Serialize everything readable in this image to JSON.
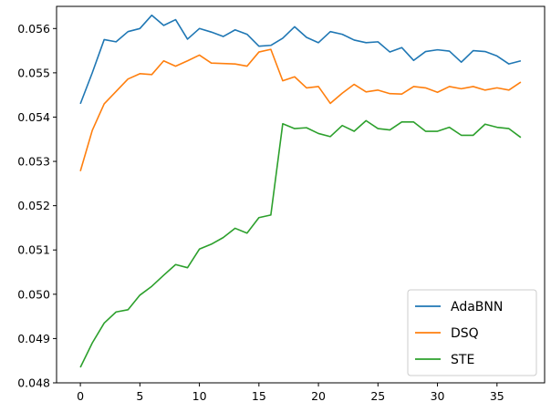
{
  "chart_data": {
    "type": "line",
    "title": "",
    "xlabel": "",
    "ylabel": "",
    "xlim": [
      -2,
      39
    ],
    "ylim": [
      0.048,
      0.0565
    ],
    "xticks": [
      0,
      5,
      10,
      15,
      20,
      25,
      30,
      35
    ],
    "yticks": [
      0.048,
      0.049,
      0.05,
      0.051,
      0.052,
      0.053,
      0.054,
      0.055,
      0.056
    ],
    "xtick_labels": [
      "0",
      "5",
      "10",
      "15",
      "20",
      "25",
      "30",
      "35"
    ],
    "ytick_labels": [
      "0.048",
      "0.049",
      "0.050",
      "0.051",
      "0.052",
      "0.053",
      "0.054",
      "0.055",
      "0.056"
    ],
    "grid": false,
    "legend_position": "lower-right",
    "x": [
      0,
      1,
      2,
      3,
      4,
      5,
      6,
      7,
      8,
      9,
      10,
      11,
      12,
      13,
      14,
      15,
      16,
      17,
      18,
      19,
      20,
      21,
      22,
      23,
      24,
      25,
      26,
      27,
      28,
      29,
      30,
      31,
      32,
      33,
      34,
      35,
      36,
      37
    ],
    "series": [
      {
        "name": "AdaBNN",
        "color": "#1f77b4",
        "values": [
          0.0543,
          0.055,
          0.05575,
          0.0557,
          0.05593,
          0.056,
          0.0563,
          0.05607,
          0.0562,
          0.05576,
          0.056,
          0.05592,
          0.05582,
          0.05597,
          0.05587,
          0.0556,
          0.05562,
          0.05578,
          0.05604,
          0.0558,
          0.05568,
          0.05593,
          0.05587,
          0.05574,
          0.05568,
          0.0557,
          0.05547,
          0.05557,
          0.05528,
          0.05548,
          0.05552,
          0.05549,
          0.05524,
          0.0555,
          0.05548,
          0.05538,
          0.0552,
          0.05527
        ]
      },
      {
        "name": "DSQ",
        "color": "#ff7f0e",
        "values": [
          0.05278,
          0.0537,
          0.0543,
          0.05458,
          0.05486,
          0.05498,
          0.05496,
          0.05527,
          0.05515,
          0.05527,
          0.0554,
          0.05522,
          0.05521,
          0.0552,
          0.05515,
          0.05547,
          0.05553,
          0.05482,
          0.05491,
          0.05466,
          0.05469,
          0.05431,
          0.05454,
          0.05474,
          0.05457,
          0.05461,
          0.05453,
          0.05452,
          0.05469,
          0.05466,
          0.05456,
          0.05469,
          0.05464,
          0.05469,
          0.05461,
          0.05466,
          0.05461,
          0.05479
        ]
      },
      {
        "name": "STE",
        "color": "#2ca02c",
        "values": [
          0.04835,
          0.0489,
          0.04935,
          0.0496,
          0.04965,
          0.04998,
          0.05018,
          0.05043,
          0.05067,
          0.0506,
          0.05102,
          0.05113,
          0.05128,
          0.05149,
          0.05138,
          0.05173,
          0.05179,
          0.05385,
          0.05374,
          0.05376,
          0.05363,
          0.05356,
          0.05381,
          0.05368,
          0.05392,
          0.05374,
          0.05371,
          0.05389,
          0.05389,
          0.05368,
          0.05368,
          0.05377,
          0.05359,
          0.05359,
          0.05384,
          0.05377,
          0.05374,
          0.05354
        ]
      }
    ]
  }
}
